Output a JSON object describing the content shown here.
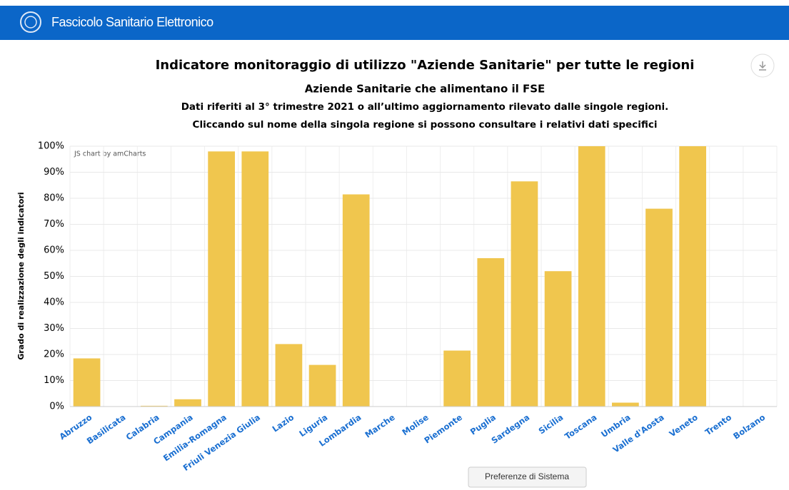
{
  "header": {
    "title": "Fascicolo Sanitario Elettronico"
  },
  "chart_data": {
    "type": "bar",
    "title": "Indicatore monitoraggio di utilizzo \"Aziende Sanitarie\" per tutte le regioni",
    "subtitle": "Aziende Sanitarie che alimentano il FSE",
    "notes": [
      "Dati riferiti al 3° trimestre 2021 o all’ultimo aggiornamento rilevato dalle singole regioni.",
      "Cliccando sul nome della singola regione si possono consultare i relativi dati specifici"
    ],
    "credits": "JS chart by amCharts",
    "y_label": "Grado di realizzazione degli indicatori",
    "categories": [
      "Abruzzo",
      "Basilicata",
      "Calabria",
      "Campania",
      "Emilia-Romagna",
      "Friuli Venezia Giulia",
      "Lazio",
      "Liguria",
      "Lombardia",
      "Marche",
      "Molise",
      "Piemonte",
      "Puglia",
      "Sardegna",
      "Sicilia",
      "Toscana",
      "Umbria",
      "Valle d'Aosta",
      "Veneto",
      "Trento",
      "Bolzano"
    ],
    "values": [
      18.5,
      0,
      0.3,
      2.8,
      98,
      98,
      24,
      16,
      81.5,
      0,
      0,
      21.5,
      57,
      86.5,
      52,
      100,
      1.5,
      76,
      100,
      0,
      0
    ],
    "color": "#f0c64e",
    "ylim": [
      0,
      100
    ],
    "yticks": [
      {
        "value": 0,
        "label": "0%"
      },
      {
        "value": 10,
        "label": "10%"
      },
      {
        "value": 20,
        "label": "20%"
      },
      {
        "value": 30,
        "label": "30%"
      },
      {
        "value": 40,
        "label": "40%"
      },
      {
        "value": 50,
        "label": "50%"
      },
      {
        "value": 60,
        "label": "60%"
      },
      {
        "value": 70,
        "label": "70%"
      },
      {
        "value": 80,
        "label": "80%"
      },
      {
        "value": 90,
        "label": "90%"
      },
      {
        "value": 100,
        "label": "100%"
      }
    ],
    "grid": true
  },
  "system_button": "Preferenze di Sistema"
}
